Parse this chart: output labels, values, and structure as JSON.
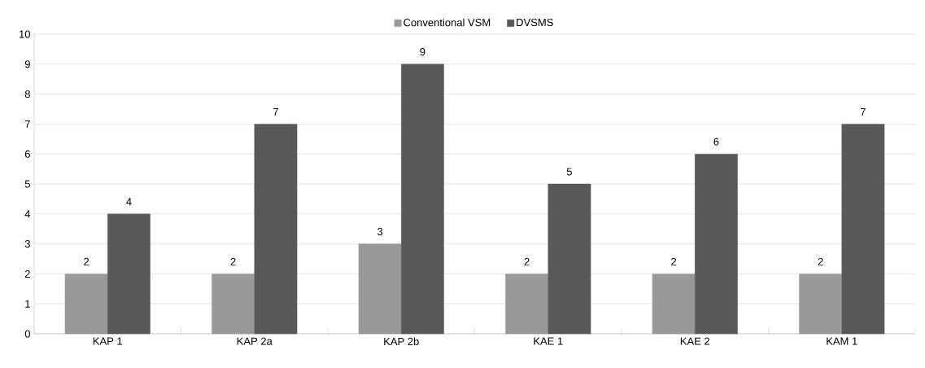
{
  "chart_data": {
    "type": "bar",
    "categories": [
      "KAP 1",
      "KAP 2a",
      "KAP 2b",
      "KAE 1",
      "KAE 2",
      "KAM 1"
    ],
    "series": [
      {
        "name": "Conventional VSM",
        "color": "#999999",
        "values": [
          2,
          2,
          3,
          2,
          2,
          2
        ]
      },
      {
        "name": "DVSMS",
        "color": "#595959",
        "values": [
          4,
          7,
          9,
          5,
          6,
          7
        ]
      }
    ],
    "ylim": [
      0,
      10
    ],
    "yticks": [
      0,
      1,
      2,
      3,
      4,
      5,
      6,
      7,
      8,
      9,
      10
    ],
    "grid": "y",
    "legend": "top",
    "data_labels": true
  }
}
